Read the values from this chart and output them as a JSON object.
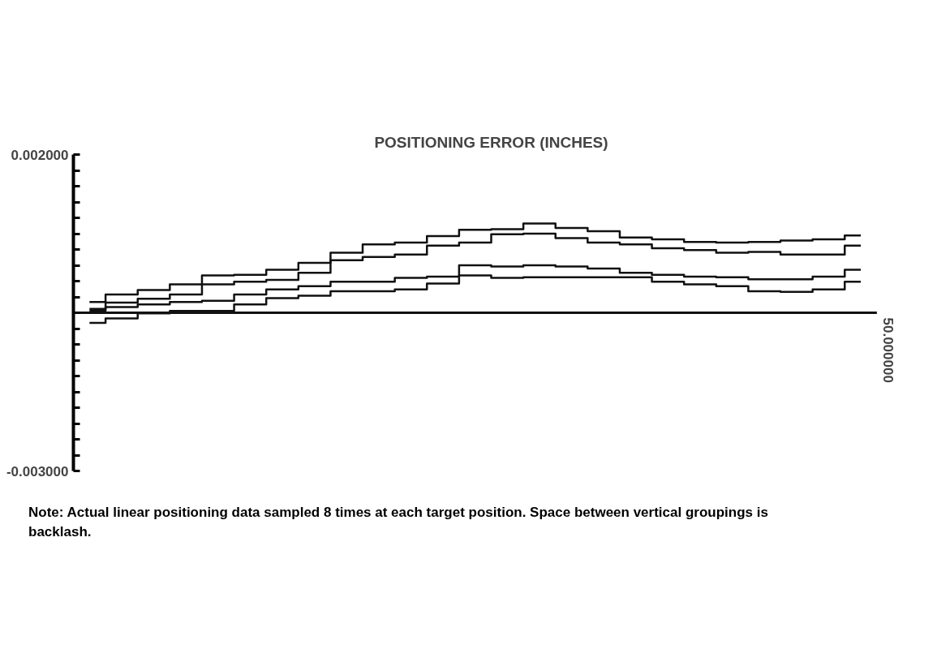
{
  "chart_data": {
    "type": "step",
    "title": "POSITIONING ERROR (INCHES)",
    "categories": [
      null,
      null,
      null,
      null,
      null,
      null,
      null,
      null,
      null,
      null,
      null,
      null,
      null,
      null,
      null,
      null,
      null,
      null,
      null,
      null,
      null,
      null,
      null,
      null,
      null
    ],
    "series": [
      {
        "color": "#111111",
        "values": [
          -0.00033,
          -0.00021,
          -0.00014,
          -5e-05,
          9e-05,
          0.0001,
          0.00018,
          0.00029,
          0.00045,
          0.00058,
          0.00061,
          0.00071,
          0.00081,
          0.00082,
          0.00091,
          0.00084,
          0.00079,
          0.00069,
          0.00066,
          0.00062,
          0.00061,
          0.00062,
          0.00064,
          0.00066,
          0.00072
        ]
      },
      {
        "color": "#111111",
        "values": [
          -0.00044,
          -0.00034,
          -0.00028,
          -0.00021,
          -5e-05,
          -1e-05,
          2e-05,
          0.00013,
          0.00033,
          0.00038,
          0.00042,
          0.00056,
          0.00061,
          0.00074,
          0.00075,
          0.00068,
          0.00061,
          0.00058,
          0.00052,
          0.00049,
          0.00045,
          0.00046,
          0.00042,
          0.00042,
          0.00056
        ]
      },
      {
        "color": "#111111",
        "values": [
          -0.00047,
          -0.00041,
          -0.00037,
          -0.00033,
          -0.00031,
          -0.00021,
          -0.00013,
          -8e-05,
          -1e-05,
          -1e-05,
          5e-05,
          7e-05,
          0.00025,
          0.00023,
          0.00025,
          0.00023,
          0.0002,
          0.00013,
          0.0001,
          7e-05,
          6e-05,
          3e-05,
          3e-05,
          7e-05,
          0.00018
        ]
      },
      {
        "color": "#111111",
        "values": [
          -0.00066,
          -0.00059,
          -0.00051,
          -0.00047,
          -0.00047,
          -0.00037,
          -0.00027,
          -0.00023,
          -0.00016,
          -0.00016,
          -0.00013,
          -4e-05,
          9e-05,
          5e-05,
          6e-05,
          6e-05,
          6e-05,
          6e-05,
          -1e-05,
          -5e-05,
          -8e-05,
          -0.00016,
          -0.00017,
          -0.00013,
          -1e-05
        ]
      }
    ],
    "ylim": [
      -0.003,
      0.002
    ],
    "yticks": [
      {
        "value": 0.002,
        "label": "0.002000"
      },
      {
        "value": 0.00175,
        "label": null
      },
      {
        "value": 0.0015,
        "label": null
      },
      {
        "value": 0.00125,
        "label": null
      },
      {
        "value": 0.001,
        "label": null
      },
      {
        "value": 0.00075,
        "label": null
      },
      {
        "value": 0.0005,
        "label": null
      },
      {
        "value": 0.00025,
        "label": null
      },
      {
        "value": 0,
        "label": null
      },
      {
        "value": -0.00025,
        "label": null
      },
      {
        "value": -0.0005,
        "label": null
      },
      {
        "value": -0.00075,
        "label": null
      },
      {
        "value": -0.001,
        "label": null
      },
      {
        "value": -0.00125,
        "label": null
      },
      {
        "value": -0.0015,
        "label": null
      },
      {
        "value": -0.00175,
        "label": null
      },
      {
        "value": -0.002,
        "label": null
      },
      {
        "value": -0.00225,
        "label": null
      },
      {
        "value": -0.0025,
        "label": null
      },
      {
        "value": -0.00275,
        "label": null
      },
      {
        "value": -0.003,
        "label": "-0.003000"
      }
    ],
    "ref_lines": [
      {
        "axis": "y",
        "value": -0.0005,
        "label": null
      }
    ],
    "grid": false,
    "line_style": "solid",
    "marker": "none",
    "annotations": [
      "50.000000",
      "Note:  Actual linear positioning data sampled 8 times at each target position. Space between vertical groupings is backlash."
    ]
  }
}
